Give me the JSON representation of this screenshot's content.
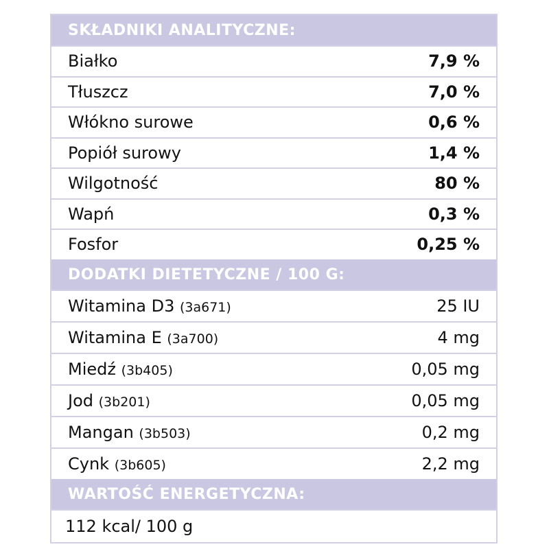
{
  "sections": {
    "analytical": {
      "title": "SKŁADNIKI ANALITYCZNE:",
      "rows": [
        {
          "name": "Białko",
          "value": "7,9 %"
        },
        {
          "name": "Tłuszcz",
          "value": "7,0 %"
        },
        {
          "name": "Włókno surowe",
          "value": "0,6 %"
        },
        {
          "name": "Popiół surowy",
          "value": "1,4 %"
        },
        {
          "name": "Wilgotność",
          "value": "80 %"
        },
        {
          "name": "Wapń",
          "value": "0,3 %"
        },
        {
          "name": "Fosfor",
          "value": "0,25 %"
        }
      ]
    },
    "additives": {
      "title": "DODATKI DIETETYCZNE / 100 G:",
      "rows": [
        {
          "name": "Witamina D3",
          "code": "(3a671)",
          "value": "25 IU"
        },
        {
          "name": "Witamina E",
          "code": "(3a700)",
          "value": "4 mg"
        },
        {
          "name": "Miedź",
          "code": "(3b405)",
          "value": "0,05 mg"
        },
        {
          "name": "Jod",
          "code": "(3b201)",
          "value": "0,05 mg"
        },
        {
          "name": "Mangan",
          "code": "(3b503)",
          "value": "0,2 mg"
        },
        {
          "name": "Cynk",
          "code": "(3b605)",
          "value": "2,2 mg"
        }
      ]
    },
    "energy": {
      "title": "WARTOŚĆ ENERGETYCZNA:",
      "value": "112 kcal/ 100 g"
    }
  }
}
